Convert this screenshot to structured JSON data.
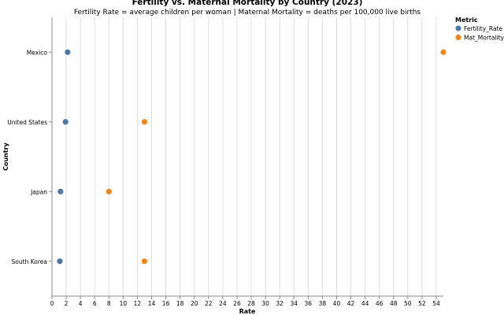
{
  "chart_data": {
    "type": "scatter",
    "title": "Fertility vs. Maternal Mortality by Country (2023)",
    "subtitle": "Fertility Rate = average children per woman | Maternal Mortality = deaths per 100,000 live births",
    "xlabel": "Rate",
    "ylabel": "Country",
    "xlim": [
      0,
      55
    ],
    "x_ticks": [
      0,
      2,
      4,
      6,
      8,
      10,
      12,
      14,
      16,
      18,
      20,
      22,
      24,
      26,
      28,
      30,
      32,
      34,
      36,
      38,
      40,
      42,
      44,
      46,
      48,
      50,
      52,
      54
    ],
    "categories": [
      "Mexico",
      "United States",
      "Japan",
      "South Korea"
    ],
    "grid": true,
    "legend": {
      "title": "Metric",
      "placement": "right"
    },
    "series": [
      {
        "name": "Fertility_Rate",
        "color": "#4c78a8",
        "values": [
          2.2,
          1.9,
          1.2,
          1.1
        ]
      },
      {
        "name": "Mat_Mortality",
        "color": "#f58518",
        "values": [
          55,
          13,
          8,
          13
        ]
      }
    ]
  }
}
